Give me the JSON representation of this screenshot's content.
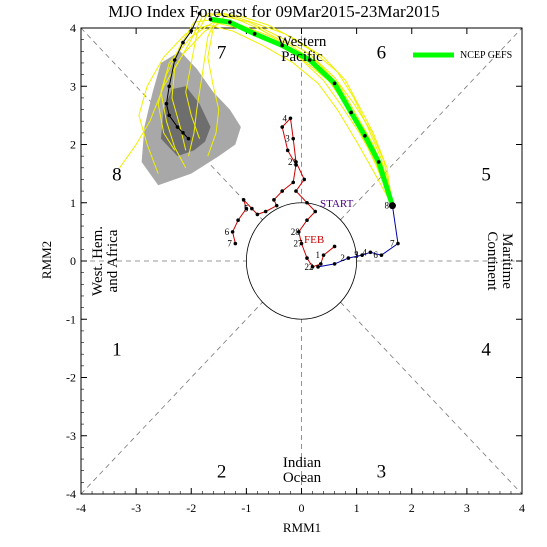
{
  "chart_data": {
    "type": "line",
    "title": "MJO Index Forecast for 09Mar2015-23Mar2015",
    "xlabel": "RMM1",
    "ylabel": "RMM2",
    "xlim": [
      -4,
      4
    ],
    "ylim": [
      -4,
      4
    ],
    "xticks": [
      "-4",
      "-3",
      "-2",
      "-1",
      "0",
      "1",
      "2",
      "3",
      "4"
    ],
    "yticks": [
      "-4",
      "-3",
      "-2",
      "-1",
      "0",
      "1",
      "2",
      "3",
      "4"
    ],
    "grid": "dashed diagonals and axes separating phases",
    "legend_position": "top-right",
    "phases": [
      {
        "label": "1",
        "x": -3.35,
        "y": -1.5
      },
      {
        "label": "2",
        "x": -1.45,
        "y": -3.6
      },
      {
        "label": "3",
        "x": 1.45,
        "y": -3.6
      },
      {
        "label": "4",
        "x": 3.35,
        "y": -1.5
      },
      {
        "label": "5",
        "x": 3.35,
        "y": 1.5
      },
      {
        "label": "6",
        "x": 1.45,
        "y": 3.6
      },
      {
        "label": "7",
        "x": -1.45,
        "y": 3.6
      },
      {
        "label": "8",
        "x": -3.35,
        "y": 1.5
      }
    ],
    "regions": {
      "western_pacific": [
        "Western",
        "Pacific"
      ],
      "indian_ocean": [
        "Indian",
        "Ocean"
      ],
      "maritime_continent": [
        "Maritime",
        "Continent"
      ],
      "west_hem_africa": [
        "West. Hem.",
        "and Africa"
      ]
    },
    "markers": {
      "start": "START",
      "feb": "FEB"
    },
    "series": [
      {
        "name": "",
        "color": "#cc0000",
        "points": [
          [
            0.6,
            0.25
          ],
          [
            0.4,
            0.1
          ],
          [
            0.35,
            -0.05
          ],
          [
            0.2,
            -0.1
          ],
          [
            0.1,
            0.05
          ],
          [
            0.0,
            0.3
          ],
          [
            -0.05,
            0.5
          ],
          [
            0.1,
            0.7
          ],
          [
            0.25,
            0.85
          ],
          [
            0.1,
            1.0
          ],
          [
            -0.1,
            1.2
          ],
          [
            0.05,
            1.4
          ],
          [
            -0.1,
            1.7
          ],
          [
            -0.15,
            2.1
          ],
          [
            -0.2,
            2.45
          ],
          [
            -0.35,
            2.3
          ],
          [
            -0.25,
            1.9
          ],
          [
            -0.1,
            1.65
          ],
          [
            -0.15,
            1.35
          ],
          [
            -0.35,
            1.2
          ],
          [
            -0.5,
            1.05
          ],
          [
            -0.45,
            0.95
          ],
          [
            -0.65,
            0.85
          ],
          [
            -0.8,
            0.8
          ],
          [
            -0.9,
            0.9
          ],
          [
            -1.05,
            1.05
          ],
          [
            -1.0,
            0.9
          ],
          [
            -1.15,
            0.7
          ],
          [
            -1.25,
            0.5
          ],
          [
            -1.2,
            0.3
          ]
        ],
        "labels": [
          {
            "t": "1",
            "i": 1
          },
          {
            "t": "28",
            "i": 6
          },
          {
            "t": "27",
            "i": 5
          },
          {
            "t": "22",
            "i": 3
          },
          {
            "t": "21",
            "i": 12
          },
          {
            "t": "3",
            "i": 13
          },
          {
            "t": "4",
            "i": 14
          },
          {
            "t": "5",
            "i": 24
          },
          {
            "t": "6",
            "i": 28
          },
          {
            "t": "7",
            "i": 29
          }
        ]
      },
      {
        "name": "",
        "color": "#0000aa",
        "points": [
          [
            0.3,
            -0.1
          ],
          [
            0.6,
            -0.05
          ],
          [
            0.85,
            0.05
          ],
          [
            1.1,
            0.1
          ],
          [
            1.25,
            0.15
          ],
          [
            1.45,
            0.1
          ],
          [
            1.75,
            0.3
          ],
          [
            1.65,
            0.95
          ]
        ],
        "labels": [
          {
            "t": "2",
            "i": 2
          },
          {
            "t": "3",
            "i": 3
          },
          {
            "t": "4",
            "i": 4
          },
          {
            "t": "5",
            "i": 3
          },
          {
            "t": "6",
            "i": 5
          },
          {
            "t": "7",
            "i": 6
          },
          {
            "t": "8",
            "i": 7
          }
        ]
      },
      {
        "name": "NCEP GEFS",
        "color": "#00ff00",
        "points": [
          [
            1.65,
            0.95
          ],
          [
            1.4,
            1.7
          ],
          [
            1.15,
            2.15
          ],
          [
            0.9,
            2.55
          ],
          [
            0.6,
            3.05
          ],
          [
            0.15,
            3.45
          ],
          [
            -0.35,
            3.7
          ],
          [
            -0.85,
            3.9
          ],
          [
            -1.3,
            4.1
          ],
          [
            -1.65,
            4.15
          ]
        ]
      },
      {
        "name": "",
        "color": "#000000",
        "points": [
          [
            -1.85,
            4.25
          ],
          [
            -2.0,
            3.95
          ],
          [
            -2.15,
            3.75
          ],
          [
            -2.3,
            3.45
          ],
          [
            -2.4,
            3.0
          ],
          [
            -2.45,
            2.7
          ],
          [
            -2.4,
            2.5
          ],
          [
            -2.25,
            2.3
          ],
          [
            -2.15,
            2.2
          ],
          [
            -2.05,
            2.1
          ]
        ]
      }
    ],
    "ensemble_members": [
      [
        [
          1.65,
          0.95
        ],
        [
          1.5,
          1.5
        ],
        [
          1.3,
          2.0
        ],
        [
          1.0,
          2.5
        ],
        [
          0.7,
          3.0
        ],
        [
          0.3,
          3.4
        ],
        [
          -0.2,
          3.7
        ],
        [
          -0.8,
          4.0
        ],
        [
          -1.3,
          4.2
        ],
        [
          -1.7,
          4.25
        ],
        [
          -1.9,
          3.9
        ],
        [
          -2.0,
          3.4
        ],
        [
          -2.1,
          2.9
        ],
        [
          -2.0,
          2.5
        ],
        [
          -1.85,
          2.1
        ]
      ],
      [
        [
          1.65,
          0.95
        ],
        [
          1.35,
          1.65
        ],
        [
          1.05,
          2.25
        ],
        [
          0.75,
          2.75
        ],
        [
          0.45,
          3.15
        ],
        [
          0.0,
          3.55
        ],
        [
          -0.55,
          3.85
        ],
        [
          -1.1,
          4.05
        ],
        [
          -1.55,
          4.15
        ],
        [
          -1.95,
          4.1
        ],
        [
          -2.2,
          3.7
        ],
        [
          -2.45,
          3.2
        ],
        [
          -2.6,
          2.7
        ],
        [
          -2.5,
          2.2
        ],
        [
          -2.3,
          1.9
        ]
      ],
      [
        [
          1.65,
          0.95
        ],
        [
          1.55,
          1.6
        ],
        [
          1.3,
          2.2
        ],
        [
          1.05,
          2.65
        ],
        [
          0.8,
          3.1
        ],
        [
          0.4,
          3.5
        ],
        [
          -0.1,
          3.8
        ],
        [
          -0.6,
          4.05
        ],
        [
          -1.1,
          4.2
        ],
        [
          -1.5,
          4.25
        ],
        [
          -1.7,
          3.85
        ],
        [
          -1.8,
          3.2
        ],
        [
          -1.9,
          2.6
        ],
        [
          -1.95,
          2.2
        ],
        [
          -2.05,
          1.8
        ]
      ],
      [
        [
          1.65,
          0.95
        ],
        [
          1.3,
          1.55
        ],
        [
          1.0,
          2.05
        ],
        [
          0.65,
          2.6
        ],
        [
          0.3,
          3.05
        ],
        [
          -0.15,
          3.4
        ],
        [
          -0.7,
          3.7
        ],
        [
          -1.25,
          3.95
        ],
        [
          -1.7,
          4.05
        ],
        [
          -2.1,
          3.9
        ],
        [
          -2.5,
          3.5
        ],
        [
          -2.8,
          3.0
        ],
        [
          -2.95,
          2.5
        ],
        [
          -2.8,
          2.0
        ],
        [
          -2.6,
          1.5
        ]
      ],
      [
        [
          1.65,
          0.95
        ],
        [
          1.45,
          1.75
        ],
        [
          1.2,
          2.3
        ],
        [
          0.95,
          2.8
        ],
        [
          0.65,
          3.25
        ],
        [
          0.2,
          3.6
        ],
        [
          -0.3,
          3.9
        ],
        [
          -0.9,
          4.1
        ],
        [
          -1.4,
          4.25
        ],
        [
          -1.8,
          4.2
        ],
        [
          -2.0,
          3.8
        ],
        [
          -2.3,
          3.3
        ],
        [
          -2.35,
          2.8
        ],
        [
          -2.2,
          2.3
        ],
        [
          -2.1,
          1.9
        ]
      ],
      [
        [
          1.65,
          0.95
        ],
        [
          1.4,
          1.6
        ],
        [
          1.1,
          2.15
        ],
        [
          0.85,
          2.6
        ],
        [
          0.55,
          3.05
        ],
        [
          0.1,
          3.4
        ],
        [
          -0.45,
          3.75
        ],
        [
          -1.0,
          4.0
        ],
        [
          -1.45,
          4.1
        ],
        [
          -1.75,
          3.95
        ],
        [
          -2.15,
          3.55
        ],
        [
          -2.5,
          3.0
        ],
        [
          -2.75,
          2.4
        ],
        [
          -3.0,
          2.0
        ],
        [
          -3.3,
          1.6
        ]
      ],
      [
        [
          1.65,
          0.95
        ],
        [
          1.5,
          1.7
        ],
        [
          1.25,
          2.25
        ],
        [
          0.95,
          2.7
        ],
        [
          0.6,
          3.15
        ],
        [
          0.15,
          3.55
        ],
        [
          -0.4,
          3.85
        ],
        [
          -0.95,
          4.1
        ],
        [
          -1.4,
          4.2
        ],
        [
          -1.6,
          4.0
        ],
        [
          -1.7,
          3.5
        ],
        [
          -1.6,
          3.0
        ],
        [
          -1.5,
          2.6
        ],
        [
          -1.55,
          2.2
        ],
        [
          -1.7,
          1.8
        ]
      ],
      [
        [
          1.65,
          0.95
        ],
        [
          1.35,
          1.7
        ],
        [
          1.05,
          2.2
        ],
        [
          0.7,
          2.7
        ],
        [
          0.4,
          3.1
        ],
        [
          -0.05,
          3.5
        ],
        [
          -0.6,
          3.8
        ],
        [
          -1.15,
          4.0
        ],
        [
          -1.6,
          4.1
        ],
        [
          -2.0,
          3.85
        ],
        [
          -2.4,
          3.4
        ],
        [
          -2.55,
          2.9
        ],
        [
          -2.45,
          2.4
        ],
        [
          -2.3,
          1.95
        ],
        [
          -2.1,
          1.6
        ]
      ]
    ],
    "spread_outer": [
      [
        -2.6,
        1.3
      ],
      [
        -2.9,
        1.7
      ],
      [
        -2.85,
        2.3
      ],
      [
        -2.7,
        2.9
      ],
      [
        -2.55,
        3.4
      ],
      [
        -2.2,
        3.6
      ],
      [
        -1.9,
        3.3
      ],
      [
        -1.6,
        2.9
      ],
      [
        -1.3,
        2.6
      ],
      [
        -1.1,
        2.3
      ],
      [
        -1.2,
        2.0
      ],
      [
        -1.5,
        1.8
      ],
      [
        -2.0,
        1.5
      ]
    ],
    "spread_inner": [
      [
        -2.25,
        1.8
      ],
      [
        -2.55,
        2.1
      ],
      [
        -2.5,
        2.6
      ],
      [
        -2.35,
        2.95
      ],
      [
        -2.1,
        3.0
      ],
      [
        -1.85,
        2.7
      ],
      [
        -1.65,
        2.3
      ],
      [
        -1.75,
        2.05
      ],
      [
        -1.95,
        1.9
      ]
    ]
  }
}
